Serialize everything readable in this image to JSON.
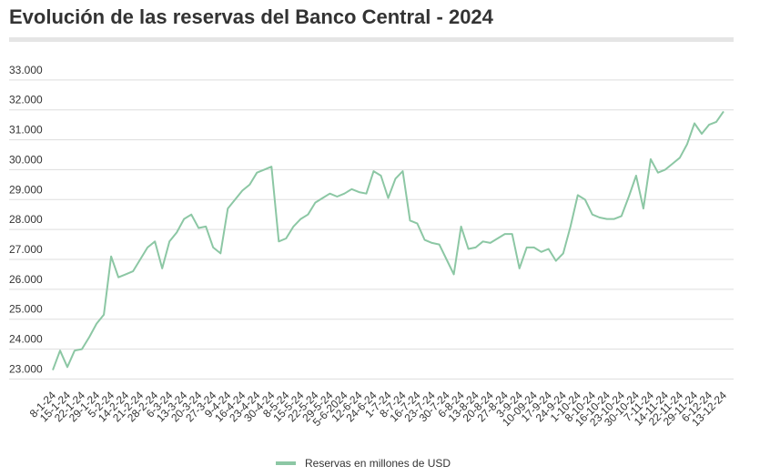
{
  "chart_data": {
    "type": "line",
    "title": "Evolución de las reservas del Banco Central - 2024",
    "categories": [
      "8-1-24",
      null,
      "15-1-24",
      null,
      "22-1-24",
      null,
      "29-1-24",
      null,
      "5-2-24",
      null,
      "14-2-24",
      null,
      "21-2-24",
      null,
      "28-2-24",
      null,
      "6-3-24",
      null,
      "13-3-24",
      null,
      "20-3-24",
      null,
      "27-3-24",
      null,
      "9-4-24",
      null,
      "16-4-24",
      null,
      "23-4-24",
      null,
      "30-4-24",
      null,
      "8-5-24",
      null,
      "15-5-24",
      null,
      "22-5-24",
      null,
      "29-5-24",
      null,
      "5-6-2024",
      null,
      "12-6-24",
      null,
      "24-6-24",
      null,
      "1-7-24",
      null,
      "8-7-24",
      null,
      "16-7-24",
      null,
      "23-7-24",
      null,
      "30-7-24",
      null,
      "6-8-24",
      null,
      "13-8-24",
      null,
      "20-8-24",
      null,
      "27-8-24",
      null,
      "3-9-24",
      null,
      "10-09-24",
      null,
      "17-9-24",
      null,
      "24-9-24",
      null,
      "1-10-24",
      null,
      "8-10-24",
      null,
      "16-10-24",
      null,
      "23-10-24",
      null,
      "30-10-24",
      null,
      "7-11-24",
      null,
      "14-11-24",
      null,
      "22-11-24",
      null,
      "29-11-24",
      null,
      "6-12-24",
      null,
      "13-12-24"
    ],
    "series": [
      {
        "name": "Reservas en millones de USD",
        "color": "#8cc7a4",
        "values": [
          23300,
          23950,
          23400,
          23950,
          24000,
          24400,
          24850,
          25150,
          27100,
          26400,
          26500,
          26600,
          27000,
          27400,
          27600,
          26700,
          27600,
          27900,
          28350,
          28500,
          28050,
          28100,
          27400,
          27200,
          28700,
          29000,
          29300,
          29500,
          29900,
          30000,
          30100,
          27600,
          27700,
          28100,
          28350,
          28500,
          28900,
          29050,
          29200,
          29100,
          29200,
          29350,
          29250,
          29200,
          29950,
          29800,
          29050,
          29700,
          29950,
          28300,
          28200,
          27650,
          27550,
          27500,
          27000,
          26500,
          28100,
          27350,
          27400,
          27600,
          27550,
          27700,
          27850,
          27850,
          26700,
          27400,
          27400,
          27250,
          27350,
          26950,
          27200,
          28100,
          29150,
          29000,
          28500,
          28400,
          28350,
          28350,
          28450,
          29100,
          29800,
          28700,
          30350,
          29900,
          30000,
          30200,
          30400,
          30850,
          31550,
          31200,
          31500,
          31600,
          31950
        ]
      }
    ],
    "ylim": [
      22800,
      33300
    ],
    "yticks": [
      {
        "value": 23000,
        "label": "23.000"
      },
      {
        "value": 24000,
        "label": "24.000"
      },
      {
        "value": 25000,
        "label": "25.000"
      },
      {
        "value": 26000,
        "label": "26.000"
      },
      {
        "value": 27000,
        "label": "27.000"
      },
      {
        "value": 28000,
        "label": "28.000"
      },
      {
        "value": 29000,
        "label": "29.000"
      },
      {
        "value": 30000,
        "label": "30.000"
      },
      {
        "value": 31000,
        "label": "31.000"
      },
      {
        "value": 32000,
        "label": "32.000"
      },
      {
        "value": 33000,
        "label": "33.000"
      }
    ],
    "grid": true
  }
}
